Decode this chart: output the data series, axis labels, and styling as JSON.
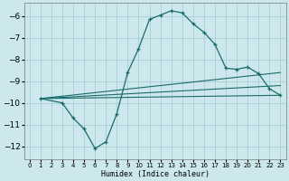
{
  "xlabel": "Humidex (Indice chaleur)",
  "bg_color": "#cce8ec",
  "grid_color": "#aacdd4",
  "line_color": "#1a6b6b",
  "xlim": [
    -0.5,
    23.5
  ],
  "ylim": [
    -12.6,
    -5.4
  ],
  "yticks": [
    -12,
    -11,
    -10,
    -9,
    -8,
    -7,
    -6
  ],
  "xticks": [
    0,
    1,
    2,
    3,
    4,
    5,
    6,
    7,
    8,
    9,
    10,
    11,
    12,
    13,
    14,
    15,
    16,
    17,
    18,
    19,
    20,
    21,
    22,
    23
  ],
  "curve_x": [
    1,
    3,
    4,
    5,
    6,
    7,
    8,
    9,
    10,
    11,
    12,
    13,
    14,
    15,
    16,
    17,
    18,
    19,
    20,
    21,
    22,
    23
  ],
  "curve_y": [
    -9.8,
    -10.0,
    -10.7,
    -11.2,
    -12.1,
    -11.8,
    -10.5,
    -8.6,
    -7.5,
    -6.15,
    -5.95,
    -5.75,
    -5.85,
    -6.35,
    -6.75,
    -7.3,
    -8.4,
    -8.45,
    -8.35,
    -8.65,
    -9.35,
    -9.65
  ],
  "line1_x": [
    1,
    23
  ],
  "line1_y": [
    -9.8,
    -9.65
  ],
  "line2_x": [
    1,
    23
  ],
  "line2_y": [
    -9.8,
    -9.2
  ],
  "line3_x": [
    1,
    23
  ],
  "line3_y": [
    -9.8,
    -8.6
  ]
}
